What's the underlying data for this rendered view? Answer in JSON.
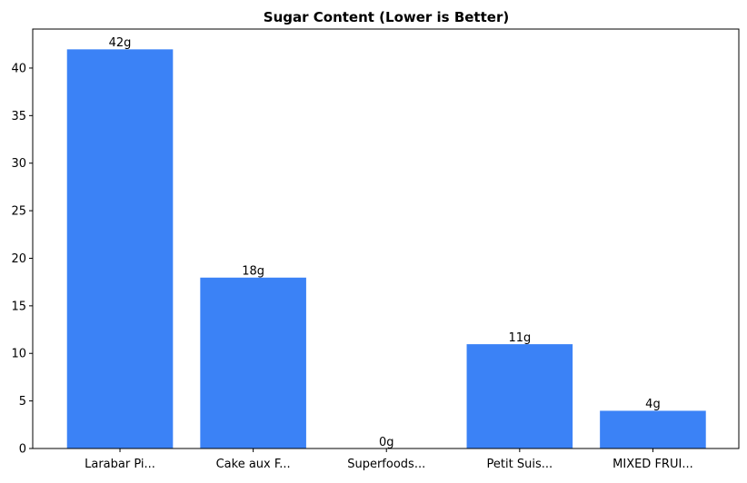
{
  "chart_data": {
    "type": "bar",
    "title": "Sugar Content (Lower is Better)",
    "xlabel": "",
    "ylabel": "",
    "categories": [
      "Larabar Pi...",
      "Cake aux F...",
      "Superfoods...",
      "Petit Suis...",
      "MIXED FRUI..."
    ],
    "values": [
      42,
      18,
      0,
      11,
      4
    ],
    "data_labels": [
      "42g",
      "18g",
      "0g",
      "11g",
      "4g"
    ],
    "ylim": [
      0,
      44.1
    ],
    "yticks": [
      0,
      5,
      10,
      15,
      20,
      25,
      30,
      35,
      40
    ],
    "grid": false,
    "bar_color": "#3b82f6",
    "edge_color": "#ffffff"
  }
}
